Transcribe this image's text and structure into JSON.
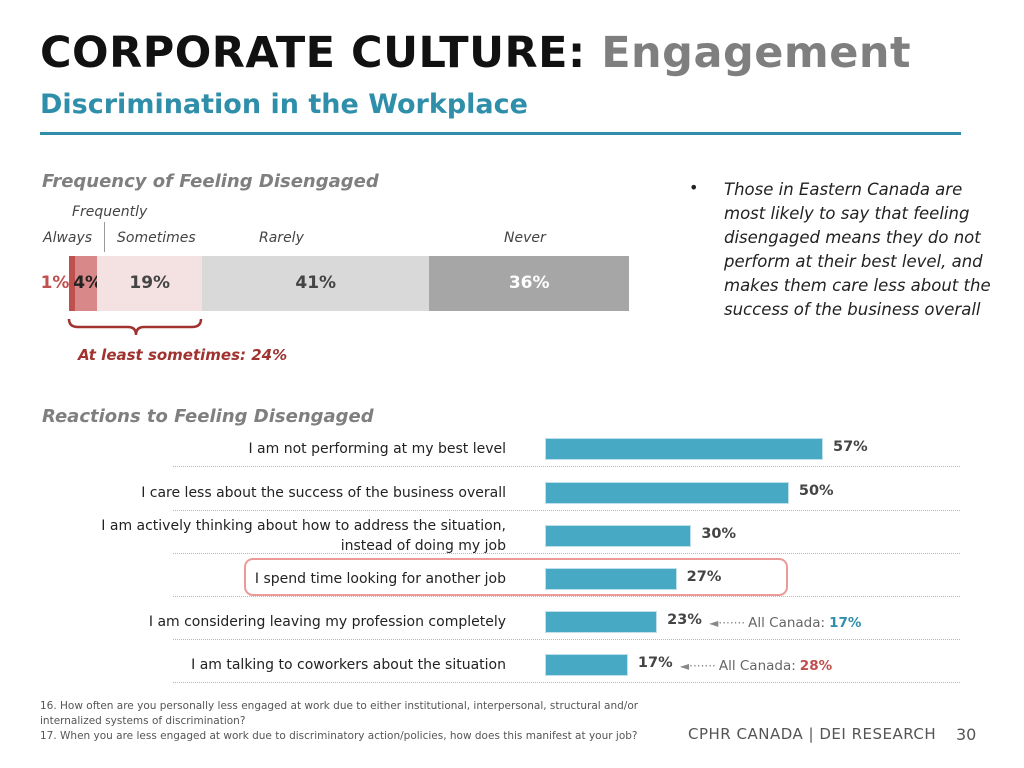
{
  "header": {
    "title_main": "CORPORATE CULTURE:",
    "title_accent": "Engagement",
    "subtitle": "Discrimination in the Workplace"
  },
  "colors": {
    "accent_blue": "#2f8ea9",
    "bar_blue": "#47a9c4",
    "highlight_red": "#c0504d",
    "summary_red": "#a0322f"
  },
  "frequency": {
    "section_title": "Frequency of Feeling Disengaged",
    "labels": {
      "frequently": "Frequently",
      "always": "Always",
      "sometimes": "Sometimes",
      "rarely": "Rarely",
      "never": "Never"
    },
    "summary": "At least sometimes: 24%"
  },
  "bullet": {
    "text": "Those in Eastern Canada are most likely to say that feeling disengaged means they do not perform at their best level, and makes them care less about the success of the business overall"
  },
  "reactions": {
    "section_title": "Reactions to Feeling Disengaged"
  },
  "chart_data": [
    {
      "type": "bar",
      "orientation": "horizontal-stacked",
      "title": "Frequency of Feeling Disengaged",
      "categories": [
        "Frequently",
        "Always",
        "Sometimes",
        "Rarely",
        "Never"
      ],
      "values": [
        1,
        4,
        19,
        41,
        36
      ],
      "value_labels": [
        "1%",
        "4%",
        "19%",
        "41%",
        "36%"
      ],
      "colors": [
        "#c0504d",
        "#d9888a",
        "#f4e1e1",
        "#d9d9d9",
        "#a6a6a6"
      ],
      "label_colors": [
        "#c0504d",
        "#222222",
        "#444444",
        "#444444",
        "#ffffff"
      ]
    },
    {
      "type": "bar",
      "orientation": "horizontal",
      "title": "Reactions to Feeling Disengaged",
      "categories": [
        "I am not performing at my best level",
        "I care less about the success of the business overall",
        "I am actively thinking about how to address the situation, instead of doing my job",
        "I spend time looking for another job",
        "I am considering leaving my profession completely",
        "I am talking to coworkers about the situation"
      ],
      "category_lines": [
        [
          "I am not performing at my best level"
        ],
        [
          "I care less about the success of the business overall"
        ],
        [
          "I am actively thinking about how to address the situation,",
          "instead of doing my job"
        ],
        [
          "I spend time looking for another job"
        ],
        [
          "I am considering leaving my profession completely"
        ],
        [
          "I am talking to coworkers about the situation"
        ]
      ],
      "values": [
        57,
        50,
        30,
        27,
        23,
        17
      ],
      "value_labels": [
        "57%",
        "50%",
        "30%",
        "27%",
        "23%",
        "17%"
      ],
      "highlighted_index": 3,
      "comparisons": [
        {
          "index": 4,
          "label": "All Canada:",
          "value": "17%",
          "value_color": "#2f8ea9"
        },
        {
          "index": 5,
          "label": "All Canada:",
          "value": "28%",
          "value_color": "#c0504d"
        }
      ],
      "comparison_arrow": "◄·······"
    }
  ],
  "footnote": {
    "line1": "16. How often are you personally less engaged at work due to either institutional, interpersonal, structural and/or internalized systems of discrimination?",
    "line2": "17. When you are less engaged at work due to discriminatory action/policies, how does this manifest at your job?"
  },
  "footer": {
    "brand": "CPHR CANADA | DEI RESEARCH",
    "page_number": "30"
  }
}
